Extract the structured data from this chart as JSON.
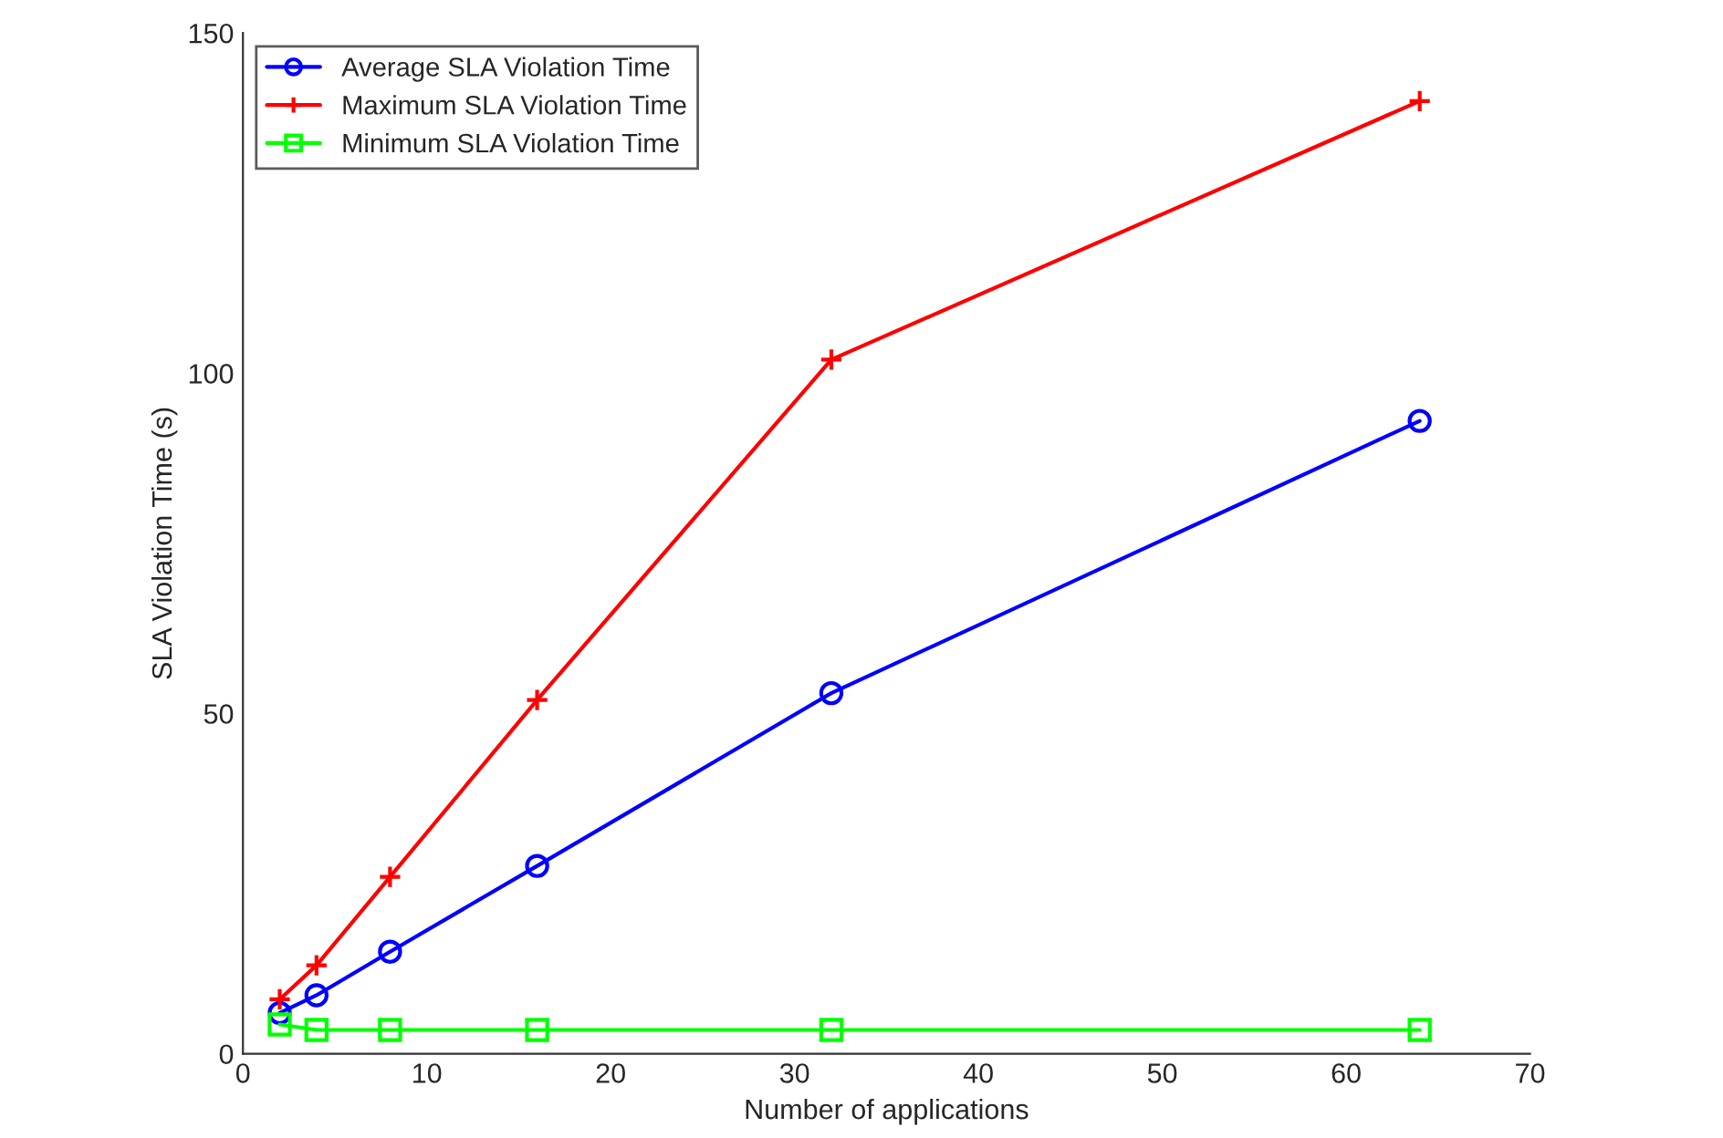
{
  "chart_data": {
    "type": "line",
    "xlabel": "Number of applications",
    "ylabel": "SLA Violation Time (s)",
    "x": [
      2,
      4,
      8,
      16,
      32,
      64
    ],
    "series": [
      {
        "name": "Average SLA Violation Time",
        "color": "#0000ff",
        "marker": "circle",
        "values": [
          6,
          8.6,
          15,
          27.6,
          53,
          93
        ]
      },
      {
        "name": "Maximum SLA Violation Time",
        "color": "#ff0000",
        "marker": "cross",
        "values": [
          8,
          13,
          26,
          52,
          102,
          140
        ]
      },
      {
        "name": "Minimum SLA Violation Time",
        "color": "#00ff00",
        "marker": "square",
        "values": [
          4.3,
          3.5,
          3.5,
          3.5,
          3.5,
          3.5
        ]
      }
    ],
    "xlim": [
      0,
      70
    ],
    "xticks": [
      0,
      10,
      20,
      30,
      40,
      50,
      60,
      70
    ],
    "ylim": [
      0,
      150
    ],
    "yticks": [
      0,
      50,
      100,
      150
    ],
    "grid": false,
    "legend": "top left",
    "line_style": "solid"
  }
}
